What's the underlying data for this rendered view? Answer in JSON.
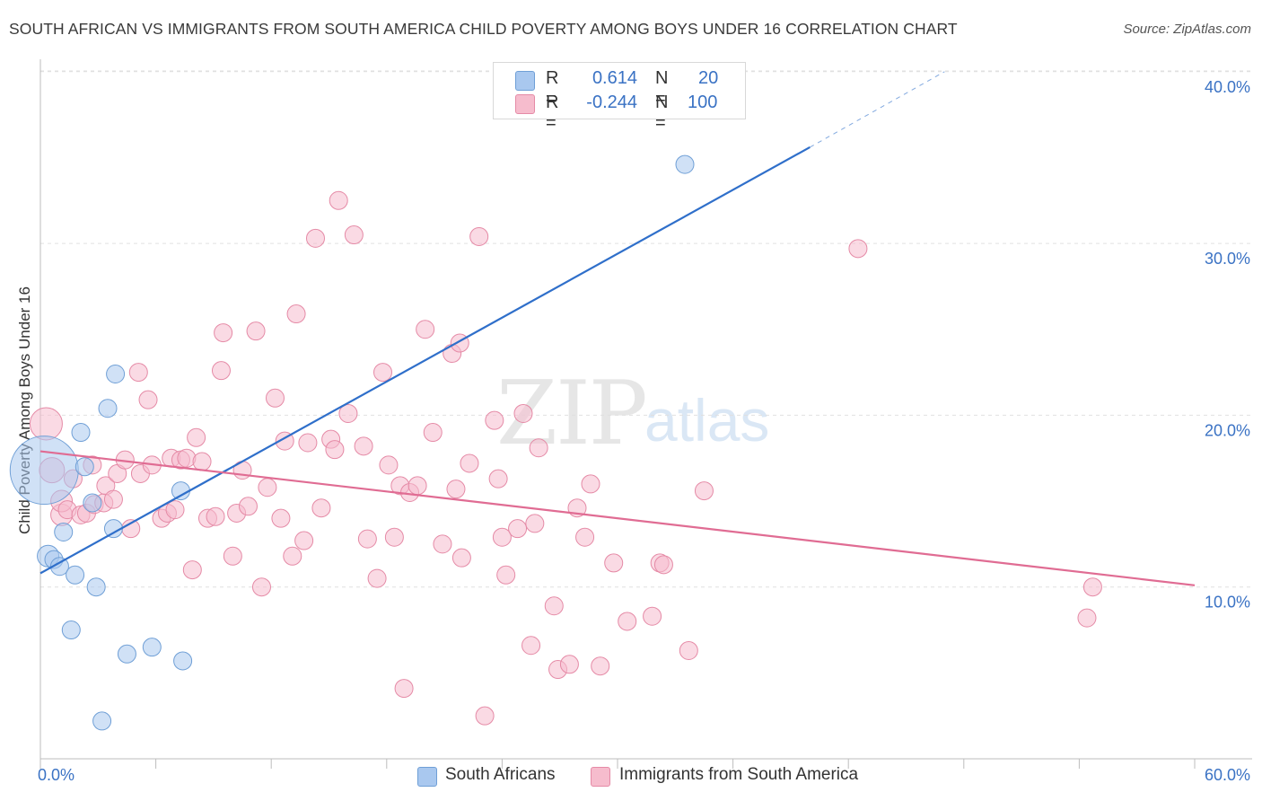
{
  "title": "SOUTH AFRICAN VS IMMIGRANTS FROM SOUTH AMERICA CHILD POVERTY AMONG BOYS UNDER 16 CORRELATION CHART",
  "source": "Source: ZipAtlas.com",
  "watermark": {
    "zip": "ZIP",
    "atlas": "atlas"
  },
  "legend": {
    "rows": [
      {
        "r_label": "R =",
        "r_value": "0.614",
        "n_label": "N =",
        "n_value": "20",
        "color": "#a9c8ef",
        "border": "#6f9fd6"
      },
      {
        "r_label": "R =",
        "r_value": "-0.244",
        "n_label": "N =",
        "n_value": "100",
        "color": "#f6bccd",
        "border": "#e58aa6"
      }
    ]
  },
  "bottom_legend": {
    "series1": "South Africans",
    "series2": "Immigrants from South America"
  },
  "colors": {
    "blue_fill": "#a9c8ef",
    "blue_stroke": "#6f9fd6",
    "blue_line": "#2f6fca",
    "pink_fill": "#f6bccd",
    "pink_stroke": "#e58aa6",
    "pink_line": "#e06c93",
    "grid": "#e0e0e0",
    "axis_label": "#3a72c4"
  },
  "chart_data": {
    "type": "scatter",
    "title": "SOUTH AFRICAN VS IMMIGRANTS FROM SOUTH AMERICA CHILD POVERTY AMONG BOYS UNDER 16 CORRELATION CHART",
    "xlabel": "",
    "ylabel": "Child Poverty Among Boys Under 16",
    "xlim": [
      0,
      60
    ],
    "ylim": [
      0,
      42
    ],
    "x_tick_labels": [
      "0.0%",
      "60.0%"
    ],
    "y_ticks": [
      10,
      20,
      30,
      40
    ],
    "y_tick_labels": [
      "10.0%",
      "20.0%",
      "30.0%",
      "40.0%"
    ],
    "series": [
      {
        "name": "South Africans",
        "points": [
          [
            0.2,
            16.8
          ],
          [
            0.4,
            11.8
          ],
          [
            0.7,
            11.6
          ],
          [
            1.0,
            11.2
          ],
          [
            1.2,
            13.2
          ],
          [
            1.8,
            10.7
          ],
          [
            2.1,
            19.0
          ],
          [
            2.3,
            17.0
          ],
          [
            2.7,
            14.9
          ],
          [
            2.9,
            10.0
          ],
          [
            1.6,
            7.5
          ],
          [
            3.5,
            20.4
          ],
          [
            3.8,
            13.4
          ],
          [
            3.9,
            22.4
          ],
          [
            4.5,
            6.1
          ],
          [
            5.8,
            6.5
          ],
          [
            7.3,
            15.6
          ],
          [
            7.4,
            5.7
          ],
          [
            3.2,
            2.2
          ],
          [
            33.5,
            34.6
          ]
        ],
        "sizes": [
          38,
          12,
          10,
          10,
          10,
          10,
          10,
          10,
          10,
          10,
          10,
          10,
          10,
          10,
          10,
          10,
          10,
          10,
          10,
          10
        ],
        "trend": {
          "x1": 0,
          "y1": 10.8,
          "x2": 40,
          "y2": 35.6,
          "dash_to_x": 47,
          "dash_to_y": 40.0
        }
      },
      {
        "name": "Immigrants from South America",
        "points": [
          [
            0.3,
            19.5
          ],
          [
            0.6,
            16.8
          ],
          [
            1.1,
            14.2
          ],
          [
            1.1,
            15.0
          ],
          [
            1.4,
            14.5
          ],
          [
            1.7,
            16.3
          ],
          [
            2.1,
            14.2
          ],
          [
            2.4,
            14.3
          ],
          [
            2.7,
            17.1
          ],
          [
            2.8,
            14.8
          ],
          [
            3.3,
            14.9
          ],
          [
            3.4,
            15.9
          ],
          [
            3.8,
            15.1
          ],
          [
            4.0,
            16.6
          ],
          [
            4.4,
            17.4
          ],
          [
            4.7,
            13.4
          ],
          [
            5.1,
            22.5
          ],
          [
            5.6,
            20.9
          ],
          [
            5.2,
            16.6
          ],
          [
            5.8,
            17.1
          ],
          [
            6.3,
            14.0
          ],
          [
            6.6,
            14.3
          ],
          [
            6.8,
            17.5
          ],
          [
            7.0,
            14.5
          ],
          [
            7.3,
            17.4
          ],
          [
            7.6,
            17.5
          ],
          [
            7.9,
            11.0
          ],
          [
            8.1,
            18.7
          ],
          [
            8.4,
            17.3
          ],
          [
            8.7,
            14.0
          ],
          [
            9.1,
            14.1
          ],
          [
            9.4,
            22.6
          ],
          [
            9.5,
            24.8
          ],
          [
            10.0,
            11.8
          ],
          [
            10.2,
            14.3
          ],
          [
            10.5,
            16.8
          ],
          [
            10.8,
            14.7
          ],
          [
            11.2,
            24.9
          ],
          [
            11.5,
            10.0
          ],
          [
            11.8,
            15.8
          ],
          [
            12.2,
            21.0
          ],
          [
            12.5,
            14.0
          ],
          [
            12.7,
            18.5
          ],
          [
            13.1,
            11.8
          ],
          [
            13.3,
            25.9
          ],
          [
            13.7,
            12.7
          ],
          [
            13.9,
            18.4
          ],
          [
            14.3,
            30.3
          ],
          [
            14.6,
            14.6
          ],
          [
            15.1,
            18.6
          ],
          [
            15.3,
            18.0
          ],
          [
            15.5,
            32.5
          ],
          [
            16.0,
            20.1
          ],
          [
            16.3,
            30.5
          ],
          [
            16.8,
            18.2
          ],
          [
            17.0,
            12.8
          ],
          [
            17.5,
            10.5
          ],
          [
            17.8,
            22.5
          ],
          [
            18.1,
            17.1
          ],
          [
            18.4,
            12.9
          ],
          [
            18.7,
            15.9
          ],
          [
            18.9,
            4.1
          ],
          [
            19.2,
            15.5
          ],
          [
            19.6,
            15.9
          ],
          [
            20.0,
            25.0
          ],
          [
            20.4,
            19.0
          ],
          [
            20.9,
            12.5
          ],
          [
            21.4,
            23.6
          ],
          [
            21.6,
            15.7
          ],
          [
            21.8,
            24.2
          ],
          [
            21.9,
            11.7
          ],
          [
            22.3,
            17.2
          ],
          [
            22.8,
            30.4
          ],
          [
            23.1,
            2.5
          ],
          [
            23.6,
            19.7
          ],
          [
            23.8,
            16.3
          ],
          [
            24.0,
            12.9
          ],
          [
            24.2,
            10.7
          ],
          [
            24.8,
            13.4
          ],
          [
            25.1,
            20.1
          ],
          [
            25.5,
            6.6
          ],
          [
            25.7,
            13.7
          ],
          [
            25.9,
            18.1
          ],
          [
            26.7,
            8.9
          ],
          [
            26.9,
            5.2
          ],
          [
            27.5,
            5.5
          ],
          [
            27.9,
            14.6
          ],
          [
            28.3,
            12.9
          ],
          [
            28.6,
            16.0
          ],
          [
            29.1,
            5.4
          ],
          [
            29.8,
            11.4
          ],
          [
            30.5,
            8.0
          ],
          [
            31.8,
            8.3
          ],
          [
            32.2,
            11.4
          ],
          [
            32.4,
            11.3
          ],
          [
            33.7,
            6.3
          ],
          [
            34.5,
            15.6
          ],
          [
            42.5,
            29.7
          ],
          [
            54.7,
            10.0
          ],
          [
            54.4,
            8.2
          ]
        ],
        "sizes": [
          18,
          14,
          12,
          12,
          10,
          10,
          10,
          10,
          10,
          10,
          10,
          10,
          10,
          10,
          10,
          10,
          10,
          10,
          10,
          10,
          10,
          10,
          10,
          10,
          10,
          10,
          10,
          10,
          10,
          10,
          10,
          10,
          10,
          10,
          10,
          10,
          10,
          10,
          10,
          10,
          10,
          10,
          10,
          10,
          10,
          10,
          10,
          10,
          10,
          10,
          10,
          10,
          10,
          10,
          10,
          10,
          10,
          10,
          10,
          10,
          10,
          10,
          10,
          10,
          10,
          10,
          10,
          10,
          10,
          10,
          10,
          10,
          10,
          10,
          10,
          10,
          10,
          10,
          10,
          10,
          10,
          10,
          10,
          10,
          10,
          10,
          10,
          10,
          10,
          10,
          10,
          10,
          10,
          10,
          10,
          10,
          10,
          10,
          10,
          10
        ],
        "trend": {
          "x1": 0,
          "y1": 17.9,
          "x2": 60,
          "y2": 10.1
        }
      }
    ]
  }
}
